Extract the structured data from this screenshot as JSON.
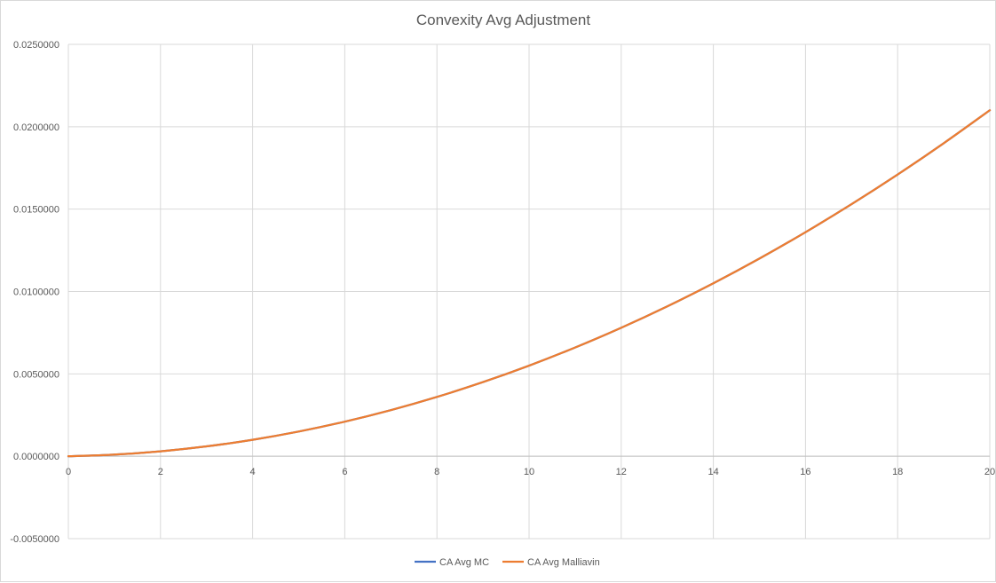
{
  "chart_data": {
    "type": "line",
    "title": "Convexity Avg Adjustment",
    "xlabel": "",
    "ylabel": "",
    "xlim": [
      0,
      20
    ],
    "ylim": [
      -0.005,
      0.025
    ],
    "x_ticks": [
      "0",
      "2",
      "4",
      "6",
      "8",
      "10",
      "12",
      "14",
      "16",
      "18",
      "20"
    ],
    "y_ticks": [
      "-0.0050000",
      "0.0000000",
      "0.0050000",
      "0.0100000",
      "0.0150000",
      "0.0200000",
      "0.0250000"
    ],
    "grid": true,
    "legend_position": "bottom",
    "x": [
      0,
      1,
      2,
      3,
      4,
      5,
      6,
      7,
      8,
      9,
      10,
      11,
      12,
      13,
      14,
      15,
      16,
      17,
      18,
      19,
      20
    ],
    "series": [
      {
        "name": "CA Avg MC",
        "color": "#4472c4",
        "values": [
          0,
          0.0001,
          0.0003,
          0.0006,
          0.001,
          0.0015,
          0.0021,
          0.0028,
          0.0036,
          0.0045,
          0.0055,
          0.0066,
          0.0078,
          0.0091,
          0.0105,
          0.012,
          0.0136,
          0.0153,
          0.0171,
          0.019,
          0.021
        ]
      },
      {
        "name": "CA Avg Malliavin",
        "color": "#ed7d31",
        "values": [
          0,
          0.0001,
          0.0003,
          0.0006,
          0.001,
          0.0015,
          0.0021,
          0.0028,
          0.0036,
          0.0045,
          0.0055,
          0.0066,
          0.0078,
          0.0091,
          0.0105,
          0.012,
          0.0136,
          0.0153,
          0.0171,
          0.019,
          0.021
        ]
      }
    ]
  }
}
